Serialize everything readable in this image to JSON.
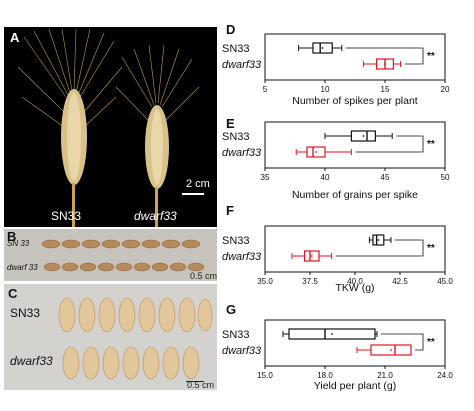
{
  "panels": {
    "A": {
      "label": "A",
      "genotypes": [
        "SN33",
        "dwarf33"
      ],
      "scale": "2 cm"
    },
    "B": {
      "label": "B",
      "genotypes": [
        "SN 33",
        "dwarf 33"
      ],
      "scale": "0.5 cm"
    },
    "C": {
      "label": "C",
      "genotypes": [
        "SN33",
        "dwarf33"
      ],
      "scale": "0.5 cm"
    }
  },
  "colors": {
    "sn33": "#111111",
    "dwarf33": "#e0141e"
  },
  "chart_data": [
    {
      "panel": "D",
      "type": "boxplot",
      "xlabel": "Number of spikes per plant",
      "xlim": [
        5,
        20
      ],
      "ticks": [
        "5",
        "10",
        "15",
        "20"
      ],
      "series": [
        {
          "name": "SN33",
          "min": 7.8,
          "q1": 9.0,
          "median": 9.6,
          "q3": 10.6,
          "max": 11.4
        },
        {
          "name": "dwarf33",
          "min": 13.2,
          "q1": 14.3,
          "median": 15.0,
          "q3": 15.7,
          "max": 16.3
        }
      ],
      "significance": "**"
    },
    {
      "panel": "E",
      "type": "boxplot",
      "xlabel": "Number of grains per spike",
      "xlim": [
        35,
        50
      ],
      "ticks": [
        "35",
        "40",
        "45",
        "50"
      ],
      "series": [
        {
          "name": "SN33",
          "min": 40.0,
          "q1": 42.2,
          "median": 43.5,
          "q3": 44.2,
          "max": 45.6
        },
        {
          "name": "dwarf33",
          "min": 37.6,
          "q1": 38.5,
          "median": 39.0,
          "q3": 40.0,
          "max": 42.2
        }
      ],
      "significance": "**"
    },
    {
      "panel": "F",
      "type": "boxplot",
      "xlabel": "TKW (g)",
      "xlim": [
        35,
        45
      ],
      "ticks": [
        "35.0",
        "37.5",
        "40.0",
        "42.5",
        "45.0"
      ],
      "series": [
        {
          "name": "SN33",
          "min": 40.8,
          "q1": 41.0,
          "median": 41.2,
          "q3": 41.6,
          "max": 42.0
        },
        {
          "name": "dwarf33",
          "min": 36.5,
          "q1": 37.2,
          "median": 37.5,
          "q3": 38.0,
          "max": 38.7
        }
      ],
      "significance": "**"
    },
    {
      "panel": "G",
      "type": "boxplot",
      "xlabel": "Yield per plant (g)",
      "xlim": [
        15,
        24
      ],
      "ticks": [
        "15.0",
        "18.0",
        "21.0",
        "24.0"
      ],
      "series": [
        {
          "name": "SN33",
          "min": 15.9,
          "q1": 16.2,
          "median": 18.0,
          "q3": 20.5,
          "max": 20.6
        },
        {
          "name": "dwarf33",
          "min": 19.6,
          "q1": 20.3,
          "median": 21.5,
          "q3": 22.3,
          "max": 22.3
        }
      ],
      "significance": "**"
    }
  ]
}
